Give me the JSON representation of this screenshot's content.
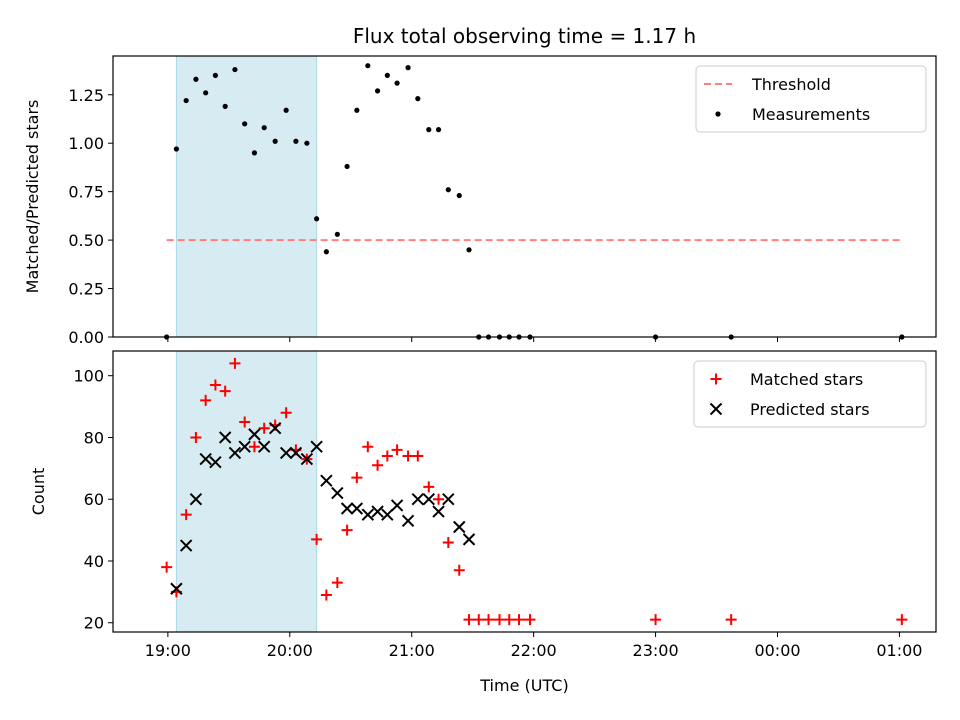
{
  "chart_data": [
    {
      "type": "scatter",
      "title": "Flux total observing time = 1.17 h",
      "xlabel": "",
      "ylabel": "Matched/Predicted stars",
      "ylim": [
        0,
        1.45
      ],
      "yticks": [
        0.0,
        0.25,
        0.5,
        0.75,
        1.0,
        1.25
      ],
      "ytick_labels": [
        "0.00",
        "0.25",
        "0.50",
        "0.75",
        "1.00",
        "1.25"
      ],
      "x_axis": "time UTC in hours (values past 24 are next day)",
      "xlim": [
        18.55,
        25.3
      ],
      "legend_position": "top-right",
      "shaded_interval": [
        19.07,
        20.22
      ],
      "shade_color": "#add8e6",
      "series": [
        {
          "name": "Threshold",
          "kind": "dashed-line",
          "color": "#ff7f7f",
          "points": [
            [
              18.99,
              0.5
            ],
            [
              25.02,
              0.5
            ]
          ]
        },
        {
          "name": "Measurements",
          "kind": "dots",
          "color": "#000000",
          "points": [
            [
              18.99,
              0.0
            ],
            [
              19.07,
              0.97
            ],
            [
              19.15,
              1.22
            ],
            [
              19.23,
              1.33
            ],
            [
              19.31,
              1.26
            ],
            [
              19.39,
              1.35
            ],
            [
              19.47,
              1.19
            ],
            [
              19.55,
              1.38
            ],
            [
              19.63,
              1.1
            ],
            [
              19.71,
              0.95
            ],
            [
              19.79,
              1.08
            ],
            [
              19.88,
              1.01
            ],
            [
              19.97,
              1.17
            ],
            [
              20.05,
              1.01
            ],
            [
              20.14,
              1.0
            ],
            [
              20.22,
              0.61
            ],
            [
              20.3,
              0.44
            ],
            [
              20.39,
              0.53
            ],
            [
              20.47,
              0.88
            ],
            [
              20.55,
              1.17
            ],
            [
              20.64,
              1.4
            ],
            [
              20.72,
              1.27
            ],
            [
              20.8,
              1.35
            ],
            [
              20.88,
              1.31
            ],
            [
              20.97,
              1.39
            ],
            [
              21.05,
              1.23
            ],
            [
              21.14,
              1.07
            ],
            [
              21.22,
              1.07
            ],
            [
              21.3,
              0.76
            ],
            [
              21.39,
              0.73
            ],
            [
              21.47,
              0.45
            ],
            [
              21.55,
              0.0
            ],
            [
              21.63,
              0.0
            ],
            [
              21.72,
              0.0
            ],
            [
              21.8,
              0.0
            ],
            [
              21.88,
              0.0
            ],
            [
              21.97,
              0.0
            ],
            [
              23.0,
              0.0
            ],
            [
              23.62,
              0.0
            ],
            [
              25.02,
              0.0
            ]
          ]
        }
      ]
    },
    {
      "type": "scatter",
      "title": "",
      "xlabel": "Time (UTC)",
      "ylabel": "Count",
      "ylim": [
        17,
        108
      ],
      "yticks": [
        20,
        40,
        60,
        80,
        100
      ],
      "ytick_labels": [
        "20",
        "40",
        "60",
        "80",
        "100"
      ],
      "xticks": [
        19,
        20,
        21,
        22,
        23,
        24,
        25
      ],
      "xtick_labels": [
        "19:00",
        "20:00",
        "21:00",
        "22:00",
        "23:00",
        "00:00",
        "01:00"
      ],
      "xlim": [
        18.55,
        25.3
      ],
      "legend_position": "top-right",
      "shaded_interval": [
        19.07,
        20.22
      ],
      "shade_color": "#add8e6",
      "series": [
        {
          "name": "Matched stars",
          "marker": "+",
          "color": "#ff0000",
          "points": [
            [
              18.99,
              38
            ],
            [
              19.07,
              30
            ],
            [
              19.15,
              55
            ],
            [
              19.23,
              80
            ],
            [
              19.31,
              92
            ],
            [
              19.39,
              97
            ],
            [
              19.47,
              95
            ],
            [
              19.55,
              104
            ],
            [
              19.63,
              85
            ],
            [
              19.71,
              77
            ],
            [
              19.79,
              83
            ],
            [
              19.88,
              84
            ],
            [
              19.97,
              88
            ],
            [
              20.05,
              76
            ],
            [
              20.14,
              73
            ],
            [
              20.22,
              47
            ],
            [
              20.3,
              29
            ],
            [
              20.39,
              33
            ],
            [
              20.47,
              50
            ],
            [
              20.55,
              67
            ],
            [
              20.64,
              77
            ],
            [
              20.72,
              71
            ],
            [
              20.8,
              74
            ],
            [
              20.88,
              76
            ],
            [
              20.97,
              74
            ],
            [
              21.05,
              74
            ],
            [
              21.14,
              64
            ],
            [
              21.22,
              60
            ],
            [
              21.3,
              46
            ],
            [
              21.39,
              37
            ],
            [
              21.47,
              21
            ],
            [
              21.55,
              21
            ],
            [
              21.63,
              21
            ],
            [
              21.72,
              21
            ],
            [
              21.8,
              21
            ],
            [
              21.88,
              21
            ],
            [
              21.97,
              21
            ],
            [
              23.0,
              21
            ],
            [
              23.62,
              21
            ],
            [
              25.02,
              21
            ]
          ]
        },
        {
          "name": "Predicted stars",
          "marker": "x",
          "color": "#000000",
          "points": [
            [
              19.07,
              31
            ],
            [
              19.15,
              45
            ],
            [
              19.23,
              60
            ],
            [
              19.31,
              73
            ],
            [
              19.39,
              72
            ],
            [
              19.47,
              80
            ],
            [
              19.55,
              75
            ],
            [
              19.63,
              77
            ],
            [
              19.71,
              81
            ],
            [
              19.79,
              77
            ],
            [
              19.88,
              83
            ],
            [
              19.97,
              75
            ],
            [
              20.05,
              75
            ],
            [
              20.14,
              73
            ],
            [
              20.22,
              77
            ],
            [
              20.3,
              66
            ],
            [
              20.39,
              62
            ],
            [
              20.47,
              57
            ],
            [
              20.55,
              57
            ],
            [
              20.64,
              55
            ],
            [
              20.72,
              56
            ],
            [
              20.8,
              55
            ],
            [
              20.88,
              58
            ],
            [
              20.97,
              53
            ],
            [
              21.05,
              60
            ],
            [
              21.14,
              60
            ],
            [
              21.22,
              56
            ],
            [
              21.3,
              60
            ],
            [
              21.39,
              51
            ],
            [
              21.47,
              47
            ]
          ]
        }
      ]
    }
  ]
}
